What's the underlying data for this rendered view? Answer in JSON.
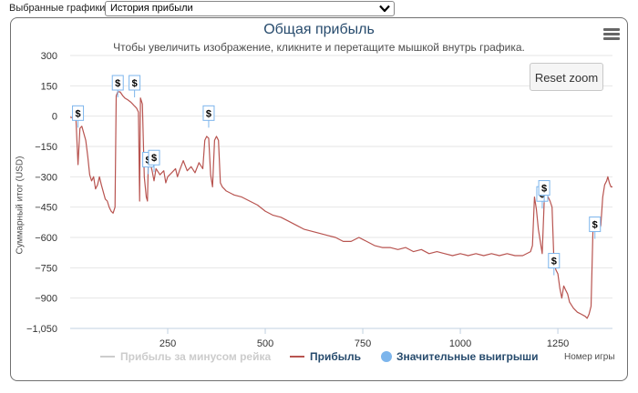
{
  "selector": {
    "label": "Выбранные графики:",
    "selected_value": "История прибыли"
  },
  "chart": {
    "title": "Общая прибыль",
    "subtitle": "Чтобы увеличить изображение, кликните и перетащите мышкой внутрь графика.",
    "reset_zoom_label": "Reset zoom",
    "menu_icon": "hamburger-menu-icon",
    "marker_symbol": "$",
    "legend": [
      {
        "name": "Прибыль за минусом рейка",
        "color": "#cccccc"
      },
      {
        "name": "Прибыль",
        "color": "#b85450"
      },
      {
        "name": "Значительные выигрыши",
        "color": "#7cb5ec"
      }
    ]
  },
  "chart_data": {
    "type": "line",
    "title": "Общая прибыль",
    "subtitle": "Чтобы увеличить изображение, кликните и перетащите мышкой внутрь графика.",
    "xlabel": "Номер игры",
    "ylabel": "Суммарный итог (USD)",
    "xlim": [
      0,
      1390
    ],
    "ylim": [
      -1050,
      300
    ],
    "x_ticks": [
      250,
      500,
      750,
      1000,
      1250
    ],
    "x_tick_labels": [
      "250",
      "500",
      "750",
      "1000",
      "1250"
    ],
    "y_ticks": [
      300,
      150,
      0,
      -150,
      -300,
      -450,
      -600,
      -750,
      -900,
      -1050
    ],
    "y_tick_labels": [
      "300",
      "150",
      "0",
      "−150",
      "−300",
      "−450",
      "−600",
      "−750",
      "−900",
      "−1,050"
    ],
    "grid": true,
    "legend_position": "bottom-center",
    "series": [
      {
        "name": "Прибыль",
        "color": "#b85450",
        "points": [
          [
            0,
            -5
          ],
          [
            10,
            -10
          ],
          [
            15,
            -20
          ],
          [
            20,
            -240
          ],
          [
            25,
            -60
          ],
          [
            30,
            -50
          ],
          [
            40,
            -120
          ],
          [
            45,
            -200
          ],
          [
            50,
            -290
          ],
          [
            55,
            -320
          ],
          [
            60,
            -300
          ],
          [
            65,
            -360
          ],
          [
            70,
            -340
          ],
          [
            75,
            -300
          ],
          [
            80,
            -340
          ],
          [
            90,
            -410
          ],
          [
            95,
            -420
          ],
          [
            100,
            -450
          ],
          [
            105,
            -470
          ],
          [
            110,
            -480
          ],
          [
            115,
            -450
          ],
          [
            118,
            100
          ],
          [
            122,
            120
          ],
          [
            128,
            120
          ],
          [
            135,
            100
          ],
          [
            140,
            90
          ],
          [
            148,
            80
          ],
          [
            155,
            70
          ],
          [
            160,
            60
          ],
          [
            165,
            50
          ],
          [
            170,
            40
          ],
          [
            175,
            20
          ],
          [
            178,
            -420
          ],
          [
            180,
            90
          ],
          [
            185,
            60
          ],
          [
            190,
            -300
          ],
          [
            195,
            -400
          ],
          [
            198,
            -420
          ],
          [
            200,
            -250
          ],
          [
            205,
            -230
          ],
          [
            210,
            -270
          ],
          [
            215,
            -320
          ],
          [
            220,
            -260
          ],
          [
            230,
            -290
          ],
          [
            240,
            -270
          ],
          [
            245,
            -330
          ],
          [
            250,
            -300
          ],
          [
            260,
            -280
          ],
          [
            270,
            -260
          ],
          [
            275,
            -300
          ],
          [
            280,
            -270
          ],
          [
            290,
            -220
          ],
          [
            300,
            -270
          ],
          [
            310,
            -250
          ],
          [
            320,
            -280
          ],
          [
            330,
            -230
          ],
          [
            340,
            -260
          ],
          [
            345,
            -120
          ],
          [
            350,
            -100
          ],
          [
            355,
            -110
          ],
          [
            360,
            -290
          ],
          [
            365,
            -350
          ],
          [
            370,
            -120
          ],
          [
            375,
            -100
          ],
          [
            380,
            -120
          ],
          [
            385,
            -330
          ],
          [
            390,
            -350
          ],
          [
            395,
            -360
          ],
          [
            400,
            -370
          ],
          [
            420,
            -390
          ],
          [
            440,
            -400
          ],
          [
            460,
            -420
          ],
          [
            480,
            -440
          ],
          [
            500,
            -470
          ],
          [
            520,
            -490
          ],
          [
            540,
            -500
          ],
          [
            560,
            -520
          ],
          [
            580,
            -540
          ],
          [
            600,
            -560
          ],
          [
            620,
            -570
          ],
          [
            640,
            -580
          ],
          [
            660,
            -590
          ],
          [
            680,
            -600
          ],
          [
            700,
            -620
          ],
          [
            720,
            -620
          ],
          [
            740,
            -600
          ],
          [
            750,
            -610
          ],
          [
            760,
            -620
          ],
          [
            780,
            -640
          ],
          [
            800,
            -650
          ],
          [
            820,
            -650
          ],
          [
            840,
            -660
          ],
          [
            860,
            -650
          ],
          [
            880,
            -670
          ],
          [
            900,
            -660
          ],
          [
            920,
            -680
          ],
          [
            940,
            -670
          ],
          [
            960,
            -680
          ],
          [
            980,
            -690
          ],
          [
            1000,
            -680
          ],
          [
            1020,
            -690
          ],
          [
            1040,
            -680
          ],
          [
            1060,
            -690
          ],
          [
            1080,
            -680
          ],
          [
            1100,
            -690
          ],
          [
            1120,
            -680
          ],
          [
            1140,
            -690
          ],
          [
            1160,
            -690
          ],
          [
            1180,
            -670
          ],
          [
            1185,
            -640
          ],
          [
            1190,
            -400
          ],
          [
            1195,
            -460
          ],
          [
            1200,
            -560
          ],
          [
            1205,
            -620
          ],
          [
            1210,
            -680
          ],
          [
            1215,
            -420
          ],
          [
            1220,
            -390
          ],
          [
            1225,
            -400
          ],
          [
            1230,
            -420
          ],
          [
            1235,
            -450
          ],
          [
            1240,
            -720
          ],
          [
            1245,
            -760
          ],
          [
            1250,
            -780
          ],
          [
            1255,
            -850
          ],
          [
            1260,
            -900
          ],
          [
            1265,
            -840
          ],
          [
            1270,
            -860
          ],
          [
            1275,
            -880
          ],
          [
            1280,
            -920
          ],
          [
            1290,
            -950
          ],
          [
            1300,
            -970
          ],
          [
            1310,
            -980
          ],
          [
            1320,
            -990
          ],
          [
            1325,
            -1000
          ],
          [
            1330,
            -980
          ],
          [
            1335,
            -940
          ],
          [
            1340,
            -560
          ],
          [
            1345,
            -570
          ],
          [
            1350,
            -550
          ],
          [
            1355,
            -570
          ],
          [
            1360,
            -540
          ],
          [
            1365,
            -400
          ],
          [
            1370,
            -340
          ],
          [
            1375,
            -320
          ],
          [
            1378,
            -300
          ],
          [
            1382,
            -330
          ],
          [
            1386,
            -350
          ],
          [
            1390,
            -350
          ]
        ]
      },
      {
        "name": "Значительные выигрыши",
        "color": "#7cb5ec",
        "marker": "$",
        "points": [
          [
            20,
            -30
          ],
          [
            122,
            120
          ],
          [
            165,
            120
          ],
          [
            200,
            -260
          ],
          [
            215,
            -250
          ],
          [
            355,
            -30
          ],
          [
            1210,
            -430
          ],
          [
            1215,
            -400
          ],
          [
            1240,
            -760
          ],
          [
            1345,
            -580
          ]
        ]
      }
    ]
  }
}
